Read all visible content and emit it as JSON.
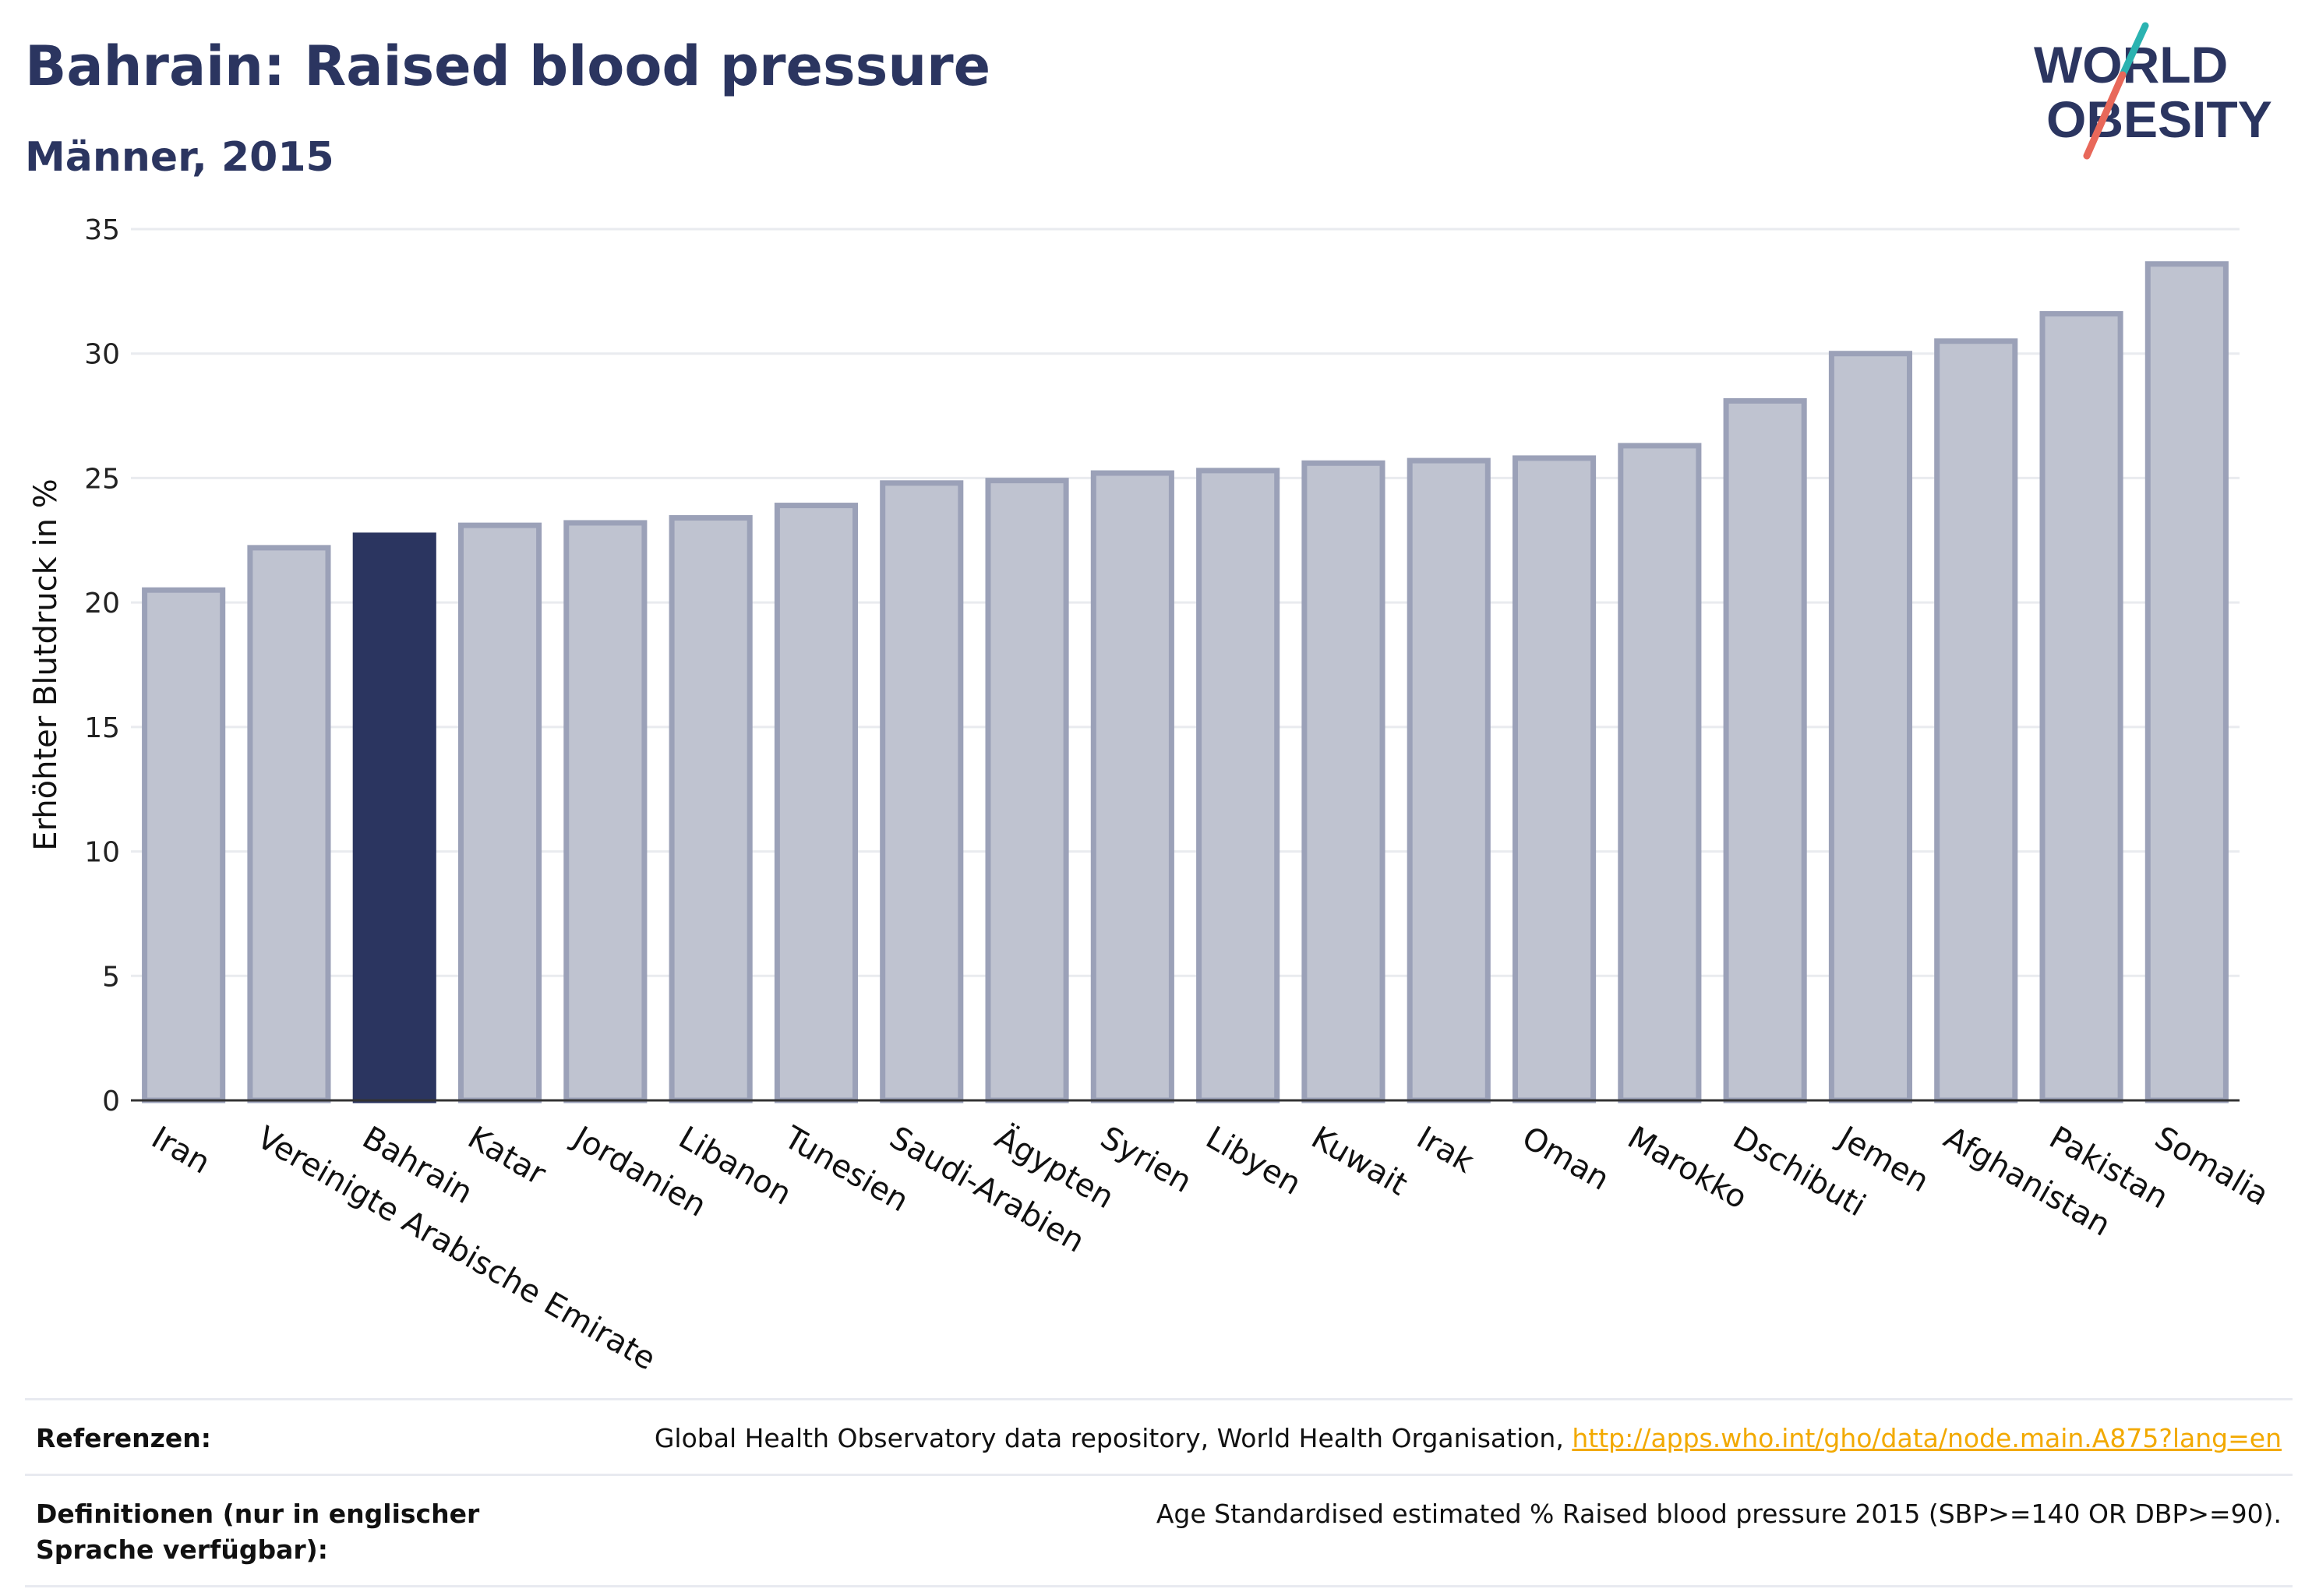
{
  "header": {
    "title": "Bahrain: Raised blood pressure",
    "subtitle": "Männer, 2015"
  },
  "logo": {
    "line1": "WORLD",
    "line2": "OBESITY",
    "colors": {
      "text": "#2b3560",
      "slash_top": "#2bb3b1",
      "slash_bottom": "#e8685a"
    }
  },
  "chart_data": {
    "type": "bar",
    "title": "Bahrain: Raised blood pressure",
    "subtitle": "Männer, 2015",
    "xlabel": "",
    "ylabel": "Erhöhter Blutdruck in %",
    "ylim": [
      0,
      35
    ],
    "yticks": [
      0,
      5,
      10,
      15,
      20,
      25,
      30,
      35
    ],
    "grid": true,
    "legend": "none",
    "highlight": "Bahrain",
    "colors": {
      "bar": "#bfc3d0",
      "bar_border": "#9ba1b8",
      "highlight": "#2b3560"
    },
    "categories": [
      "Iran",
      "Vereinigte Arabische Emirate",
      "Bahrain",
      "Katar",
      "Jordanien",
      "Libanon",
      "Tunesien",
      "Saudi-Arabien",
      "Ägypten",
      "Syrien",
      "Libyen",
      "Kuwait",
      "Irak",
      "Oman",
      "Marokko",
      "Dschibuti",
      "Jemen",
      "Afghanistan",
      "Pakistan",
      "Somalia"
    ],
    "values": [
      20.5,
      22.2,
      22.7,
      23.1,
      23.2,
      23.4,
      23.9,
      24.8,
      24.9,
      25.2,
      25.3,
      25.6,
      25.7,
      25.8,
      26.3,
      28.1,
      30.0,
      30.5,
      31.6,
      33.6
    ]
  },
  "footer": {
    "references_label": "Referenzen:",
    "references_text": "Global Health Observatory data repository, World Health Organisation,",
    "references_link": "http://apps.who.int/gho/data/node.main.A875?lang=en",
    "definitions_label": "Definitionen (nur in englischer Sprache verfügbar):",
    "definitions_text": "Age Standardised estimated % Raised blood pressure 2015 (SBP>=140 OR DBP>=90)."
  }
}
